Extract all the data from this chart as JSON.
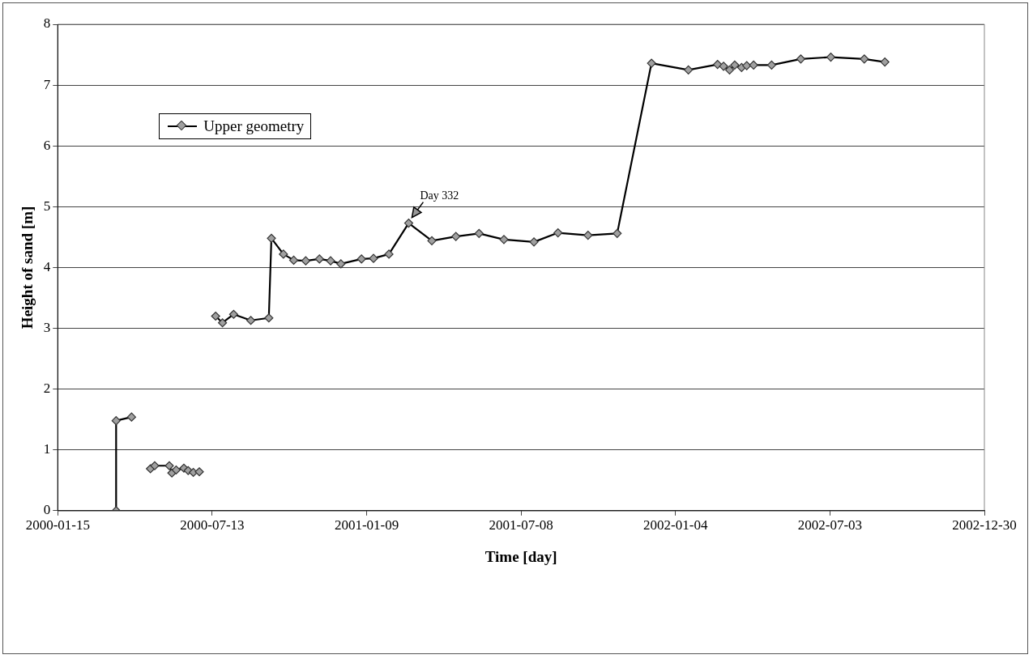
{
  "chart_data": {
    "type": "line",
    "xlabel": "Time [day]",
    "ylabel": "Height of sand [m]",
    "series": [
      {
        "name": "Upper geometry",
        "color": "#000000",
        "x": [
          "2000-03-23",
          "2000-03-23",
          "2000-04-10",
          "2000-04-20",
          "2000-05-02",
          "2000-05-07",
          "2000-05-24",
          "2000-05-27",
          "2000-06-01",
          "2000-06-10",
          "2000-06-15",
          "2000-06-21",
          "2000-06-28",
          "2000-07-08",
          "2000-07-17",
          "2000-07-25",
          "2000-08-07",
          "2000-08-27",
          "2000-09-17",
          "2000-09-20",
          "2000-10-04",
          "2000-10-16",
          "2000-10-30",
          "2000-11-15",
          "2000-11-28",
          "2000-12-10",
          "2001-01-03",
          "2001-01-17",
          "2001-02-04",
          "2001-02-27",
          "2001-03-26",
          "2001-04-23",
          "2001-05-20",
          "2001-06-18",
          "2001-07-23",
          "2001-08-20",
          "2001-09-24",
          "2001-10-28",
          "2001-12-07",
          "2002-01-19",
          "2002-02-22",
          "2002-03-01",
          "2002-03-08",
          "2002-03-14",
          "2002-03-22",
          "2002-03-28",
          "2002-04-05",
          "2002-04-26",
          "2002-05-30",
          "2002-07-04",
          "2002-08-12",
          "2002-09-05"
        ],
        "values": [
          0,
          1.48,
          1.54,
          null,
          0.69,
          0.74,
          0.74,
          0.62,
          0.67,
          0.7,
          0.66,
          0.63,
          0.64,
          null,
          3.2,
          3.09,
          3.23,
          3.13,
          3.17,
          4.48,
          4.22,
          4.12,
          4.11,
          4.14,
          4.11,
          4.06,
          4.14,
          4.15,
          4.22,
          4.73,
          4.44,
          4.51,
          4.56,
          4.46,
          4.42,
          4.57,
          4.53,
          4.56,
          7.36,
          7.25,
          7.34,
          7.31,
          7.25,
          7.33,
          7.29,
          7.32,
          7.33,
          7.33,
          7.43,
          7.46,
          7.43,
          7.38
        ]
      }
    ],
    "xlim": [
      "2000-01-15",
      "2002-12-30"
    ],
    "xticks": [
      "2000-01-15",
      "2000-07-13",
      "2001-01-09",
      "2001-07-08",
      "2002-01-04",
      "2002-07-03",
      "2002-12-30"
    ],
    "ylim": [
      0,
      8
    ],
    "yticks": [
      0,
      1,
      2,
      3,
      4,
      5,
      6,
      7,
      8
    ],
    "grid": "y",
    "legend": "top left",
    "marker": "diamond",
    "line_style": "solid",
    "annotations": [
      {
        "text": "Day 332",
        "x": "2001-02-27",
        "y": 4.73
      }
    ]
  }
}
